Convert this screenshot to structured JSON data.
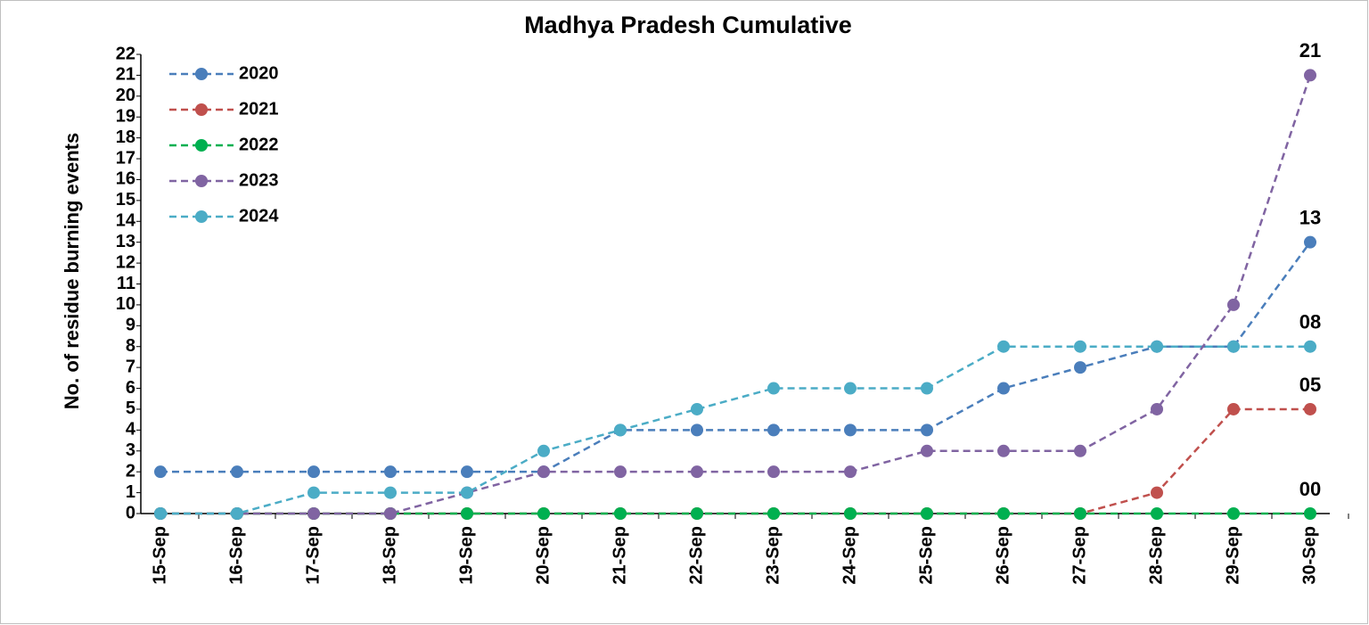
{
  "chart_data": {
    "type": "line",
    "title": "Madhya Pradesh Cumulative",
    "y_label": "No. of residue burning events",
    "categories": [
      "15-Sep",
      "16-Sep",
      "17-Sep",
      "18-Sep",
      "19-Sep",
      "20-Sep",
      "21-Sep",
      "22-Sep",
      "23-Sep",
      "24-Sep",
      "25-Sep",
      "26-Sep",
      "27-Sep",
      "28-Sep",
      "29-Sep",
      "30-Sep"
    ],
    "series": [
      {
        "name": "2020",
        "color": "#4a7ebb",
        "label_color": "#0070c0",
        "values": [
          2,
          2,
          2,
          2,
          2,
          2,
          4,
          4,
          4,
          4,
          4,
          6,
          7,
          8,
          8,
          13
        ],
        "value_labels": [
          null,
          null,
          null,
          null,
          null,
          null,
          null,
          null,
          null,
          null,
          null,
          null,
          null,
          null,
          null,
          "13"
        ]
      },
      {
        "name": "2021",
        "color": "#c0504d",
        "label_color": "#c0504d",
        "values": [
          0,
          0,
          0,
          0,
          0,
          0,
          0,
          0,
          0,
          0,
          0,
          0,
          0,
          1,
          5,
          5
        ],
        "value_labels": [
          null,
          null,
          null,
          null,
          null,
          null,
          null,
          null,
          null,
          null,
          null,
          null,
          null,
          null,
          null,
          "05"
        ]
      },
      {
        "name": "2022",
        "color": "#00b050",
        "label_color": "#00b050",
        "values": [
          0,
          0,
          0,
          0,
          0,
          0,
          0,
          0,
          0,
          0,
          0,
          0,
          0,
          0,
          0,
          0
        ],
        "value_labels": [
          null,
          null,
          null,
          null,
          null,
          null,
          null,
          null,
          null,
          null,
          null,
          null,
          null,
          null,
          null,
          "00"
        ]
      },
      {
        "name": "2023",
        "color": "#8064a2",
        "label_color": "#8064a2",
        "values": [
          0,
          0,
          0,
          0,
          1,
          2,
          2,
          2,
          2,
          2,
          3,
          3,
          3,
          5,
          10,
          21
        ],
        "value_labels": [
          null,
          null,
          null,
          null,
          null,
          null,
          null,
          null,
          null,
          null,
          null,
          null,
          null,
          null,
          null,
          "21"
        ]
      },
      {
        "name": "2024",
        "color": "#4bacc6",
        "label_color": "#4bacc6",
        "values": [
          0,
          0,
          1,
          1,
          1,
          3,
          4,
          5,
          6,
          6,
          6,
          8,
          8,
          8,
          8,
          8
        ],
        "value_labels": [
          null,
          null,
          null,
          null,
          null,
          null,
          null,
          null,
          null,
          null,
          null,
          null,
          null,
          null,
          null,
          "08"
        ]
      }
    ],
    "ylim": [
      0,
      22
    ],
    "yticks": [
      0,
      1,
      2,
      3,
      4,
      5,
      6,
      7,
      8,
      9,
      10,
      11,
      12,
      13,
      14,
      15,
      16,
      17,
      18,
      19,
      20,
      21,
      22
    ],
    "grid": false,
    "legend": "top-left"
  }
}
